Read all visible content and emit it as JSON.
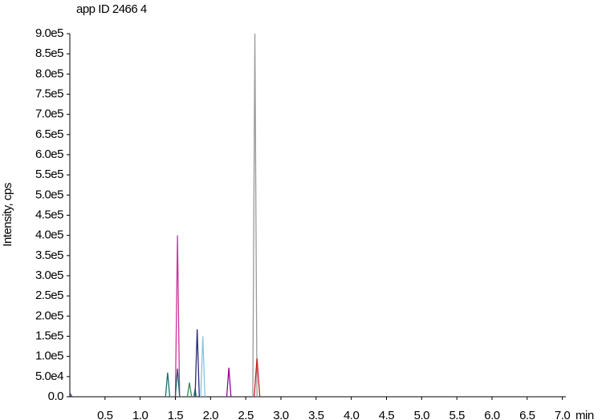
{
  "chart_data": {
    "type": "line",
    "title": "app ID 2466 4",
    "y_label": "Intensity, cps",
    "x_label": "min",
    "xlim": [
      0,
      7.05
    ],
    "ylim": [
      0,
      900000
    ],
    "xticks": [
      0.5,
      {
        "value": 1,
        "label": "1.0"
      },
      1.5,
      {
        "value": 2,
        "label": "2.0"
      },
      2.5,
      {
        "value": 3,
        "label": "3.0"
      },
      3.5,
      {
        "value": 4,
        "label": "4.0"
      },
      4.5,
      {
        "value": 5,
        "label": "5.0"
      },
      5.5,
      {
        "value": 6,
        "label": "6.0"
      },
      6.5,
      {
        "value": 7,
        "label": "7.0"
      }
    ],
    "yticks": [
      {
        "value": 0,
        "label": "0.0"
      },
      {
        "value": 50000,
        "label": "5.0e4"
      },
      {
        "value": 100000,
        "label": "1.0e5"
      },
      {
        "value": 150000,
        "label": "1.5e5"
      },
      {
        "value": 200000,
        "label": "2.0e5"
      },
      {
        "value": 250000,
        "label": "2.5e5"
      },
      {
        "value": 300000,
        "label": "3.0e5"
      },
      {
        "value": 350000,
        "label": "3.5e5"
      },
      {
        "value": 400000,
        "label": "4.0e5"
      },
      {
        "value": 450000,
        "label": "4.5e5"
      },
      {
        "value": 500000,
        "label": "5.0e5"
      },
      {
        "value": 550000,
        "label": "5.5e5"
      },
      {
        "value": 600000,
        "label": "6.0e5"
      },
      {
        "value": 650000,
        "label": "6.5e5"
      },
      {
        "value": 700000,
        "label": "7.0e5"
      },
      {
        "value": 750000,
        "label": "7.5e5"
      },
      {
        "value": 800000,
        "label": "8.0e5"
      },
      {
        "value": 850000,
        "label": "8.5e5"
      },
      {
        "value": 900000,
        "label": "9.0e5"
      }
    ],
    "series": [
      {
        "color": "#333399",
        "x": [
          0,
          0.01,
          0.03
        ],
        "values": [
          10000,
          6000,
          0
        ]
      },
      {
        "color": "#1f6f6f",
        "x": [
          1.36,
          1.39,
          1.42
        ],
        "values": [
          0,
          60000,
          0
        ]
      },
      {
        "color": "#cc3399",
        "x": [
          1.5,
          1.53,
          1.56
        ],
        "values": [
          0,
          400000,
          0
        ]
      },
      {
        "color": "#225f66",
        "x": [
          1.5,
          1.53,
          1.56
        ],
        "values": [
          0,
          70000,
          0
        ]
      },
      {
        "color": "#2e8b57",
        "x": [
          1.67,
          1.7,
          1.73
        ],
        "values": [
          0,
          35000,
          0
        ]
      },
      {
        "color": "#3a9a6a",
        "x": [
          1.76,
          1.78,
          1.8
        ],
        "values": [
          0,
          20000,
          0
        ]
      },
      {
        "color": "#2b2b7a",
        "x": [
          1.78,
          1.81,
          1.84
        ],
        "values": [
          0,
          167000,
          0
        ]
      },
      {
        "color": "#87c3e0",
        "x": [
          1.86,
          1.89,
          1.92
        ],
        "values": [
          0,
          150000,
          0
        ]
      },
      {
        "color": "#990099",
        "x": [
          2.23,
          2.26,
          2.29
        ],
        "values": [
          0,
          72000,
          0
        ]
      },
      {
        "color": "#999999",
        "x": [
          2.6,
          2.63,
          2.66
        ],
        "values": [
          0,
          900000,
          0
        ]
      },
      {
        "color": "#cc2222",
        "x": [
          2.62,
          2.66,
          2.7
        ],
        "values": [
          0,
          95000,
          0
        ]
      }
    ]
  }
}
